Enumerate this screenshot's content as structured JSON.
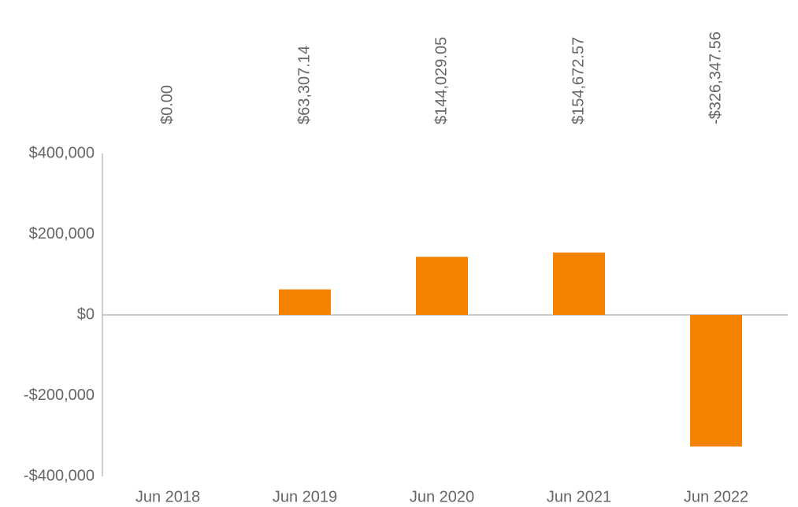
{
  "chart_data": {
    "type": "bar",
    "categories": [
      "Jun 2018",
      "Jun 2019",
      "Jun 2020",
      "Jun 2021",
      "Jun 2022"
    ],
    "values": [
      0,
      63307.14,
      144029.05,
      154672.57,
      -326347.56
    ],
    "value_labels": [
      "$0.00",
      "$63,307.14",
      "$144,029.05",
      "$154,672.57",
      "-$326,347.56"
    ],
    "color": "#f58200",
    "ylim": [
      -400000,
      400000
    ],
    "yticks": [
      {
        "value": -400000,
        "label": "-$400,000"
      },
      {
        "value": -200000,
        "label": "-$200,000"
      },
      {
        "value": 0,
        "label": "$0"
      },
      {
        "value": 200000,
        "label": "$200,000"
      },
      {
        "value": 400000,
        "label": "$400,000"
      }
    ],
    "grid": false
  }
}
